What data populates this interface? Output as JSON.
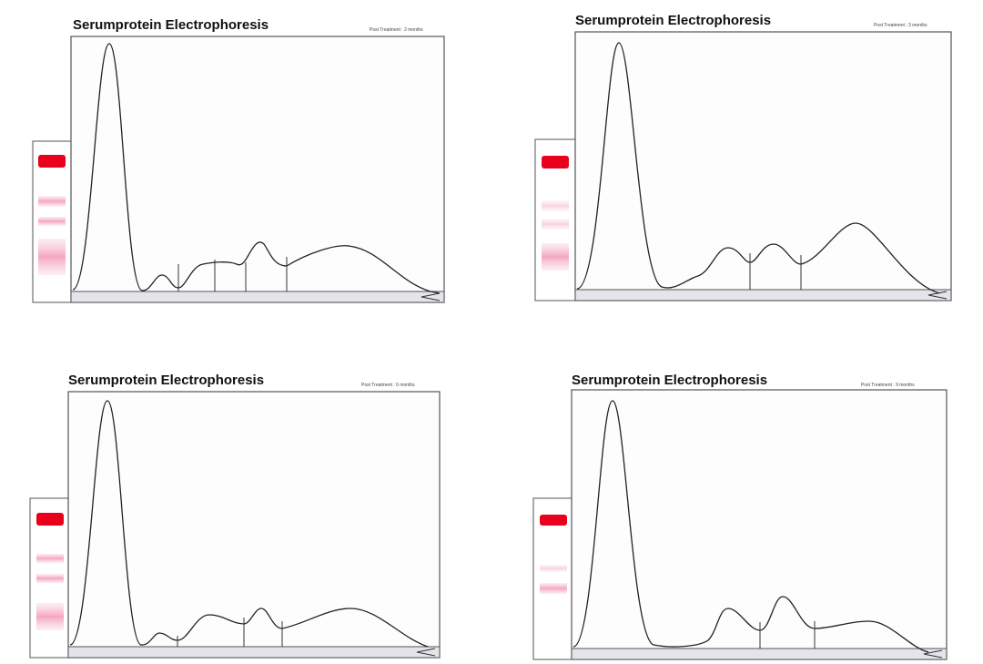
{
  "panels": [
    {
      "title": "Serumprotein Electrophoresis",
      "subtitle": "Post Treatment : 2 months"
    },
    {
      "title": "Serumprotein Electrophoresis",
      "subtitle": "Post Treatment : 3 months"
    },
    {
      "title": "Serumprotein Electrophoresis",
      "subtitle": "Post Treatment : 6 months"
    },
    {
      "title": "Serumprotein Electrophoresis",
      "subtitle": "Post Treatment : 9 months"
    }
  ]
}
